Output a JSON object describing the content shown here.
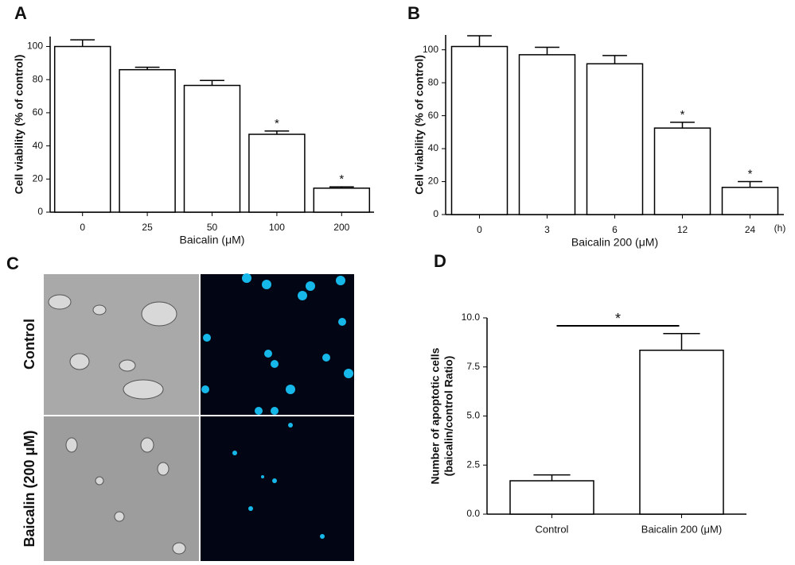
{
  "chart_data": [
    {
      "type": "bar",
      "panel": "A",
      "ylabel": "Cell viability (% of control)",
      "xlabel": "Baicalin (μM)",
      "categories": [
        "0",
        "25",
        "50",
        "100",
        "200"
      ],
      "values": [
        100,
        86,
        76.5,
        47,
        14.5
      ],
      "errors": [
        4,
        1.5,
        3,
        2,
        0.8
      ],
      "markers": [
        null,
        null,
        null,
        "*",
        "*"
      ],
      "color": "#ffffff",
      "ylim": [
        0,
        106
      ],
      "yticks": [
        0,
        20,
        40,
        60,
        80,
        100
      ]
    },
    {
      "type": "bar",
      "panel": "B",
      "ylabel": "Cell viability (% of control)",
      "xlabel": "Baicalin 200 (μM)",
      "x_unit": "(h)",
      "categories": [
        "0",
        "3",
        "6",
        "12",
        "24"
      ],
      "values": [
        102,
        97,
        91.5,
        52.5,
        16.5
      ],
      "errors": [
        6.5,
        4.5,
        5,
        3.5,
        3.5
      ],
      "markers": [
        null,
        null,
        null,
        "*",
        "*"
      ],
      "color": "#ffffff",
      "ylim": [
        0,
        109
      ],
      "yticks": [
        0,
        20,
        40,
        60,
        80,
        100
      ]
    },
    {
      "type": "bar",
      "panel": "D",
      "ylabel": [
        "Number of apoptotic cells",
        "(baicalin/control Ratio)"
      ],
      "categories": [
        "Control",
        "Baicalin 200 (μM)"
      ],
      "values": [
        1.7,
        8.35
      ],
      "errors": [
        0.3,
        0.85
      ],
      "significance": "*",
      "color": "#ffffff",
      "ylim": [
        0,
        10
      ],
      "yticks": [
        {
          "value": 0,
          "label": "0.0"
        },
        2.5,
        {
          "value": 5,
          "label": "5.0"
        },
        7.5,
        {
          "value": 10,
          "label": "10.0"
        }
      ]
    }
  ],
  "micrographs": {
    "panel": "C",
    "row_labels": [
      "Control",
      "Baicalin (200 μM)"
    ]
  }
}
